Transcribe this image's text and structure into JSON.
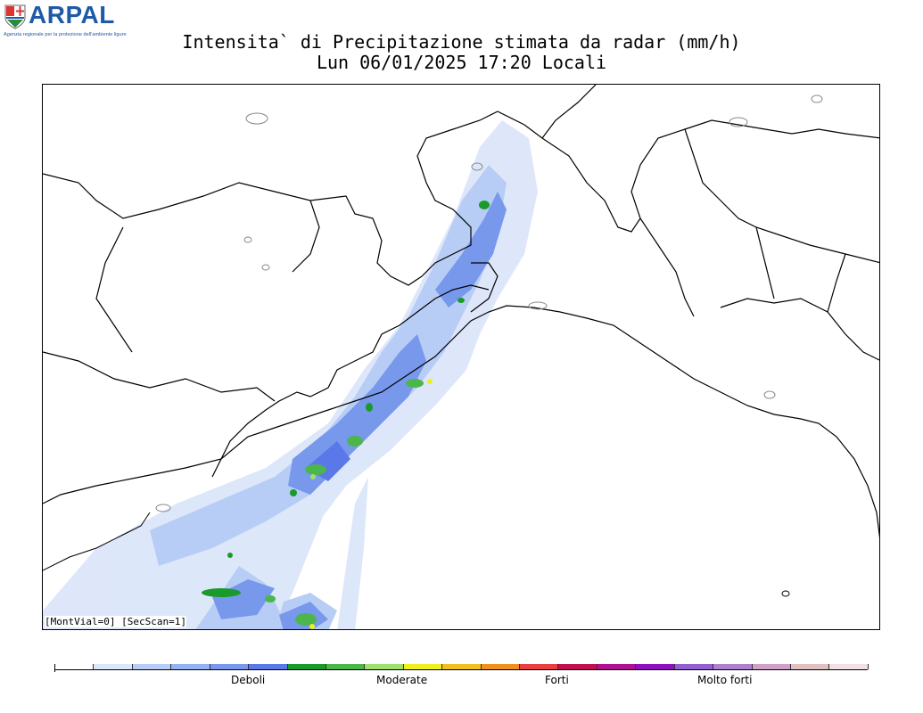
{
  "header": {
    "logo_text": "ARPAL",
    "logo_subtitle": "Agenzia regionale per la protezione dell'ambiente ligure",
    "title_line1": "Intensita` di Precipitazione stimata da radar (mm/h)",
    "title_line2": "Lun 06/01/2025 17:20 Locali"
  },
  "map": {
    "footnote": "[MontVial=0] [SecScan=1]",
    "colors": {
      "sea_land": "#ffffff",
      "border": "#000000",
      "lake": "#888888"
    }
  },
  "legend": {
    "colors": [
      "#ffffff",
      "#dce6fa",
      "#b8cdf5",
      "#94b3f0",
      "#7898ec",
      "#5a78e8",
      "#1a9a2a",
      "#4cb64a",
      "#a0e070",
      "#f0f020",
      "#f0c020",
      "#f09020",
      "#e84040",
      "#c01050",
      "#b01090",
      "#9010c0",
      "#9060d0",
      "#b080d0",
      "#d0a0c8",
      "#e0c0c0",
      "#f0e0e8"
    ],
    "labels": [
      "Deboli",
      "Moderate",
      "Forti",
      "Molto  forti"
    ]
  }
}
